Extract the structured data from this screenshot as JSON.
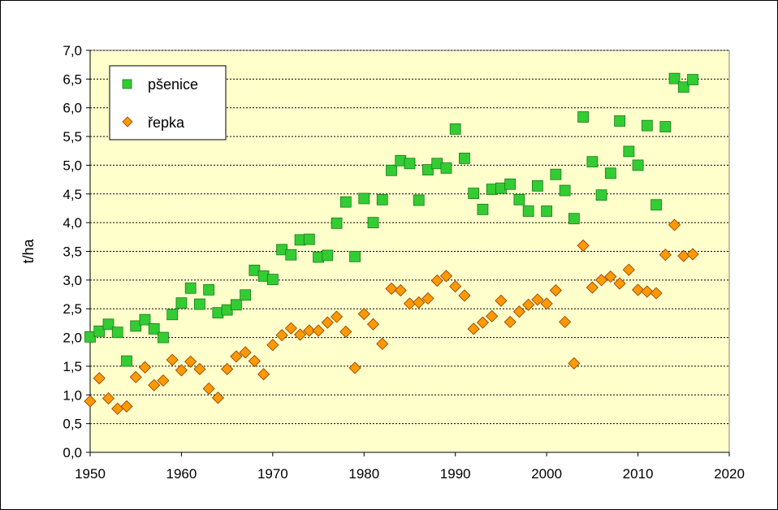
{
  "chart_data": {
    "type": "scatter",
    "title": "",
    "xlabel": "",
    "ylabel": "t/ha",
    "xlim": [
      1950,
      2020
    ],
    "ylim": [
      0,
      7
    ],
    "x_ticks": [
      "1950",
      "1960",
      "1970",
      "1980",
      "1990",
      "2000",
      "2010",
      "2020"
    ],
    "y_ticks": [
      "0,0",
      "0,5",
      "1,0",
      "1,5",
      "2,0",
      "2,5",
      "3,0",
      "3,5",
      "4,0",
      "4,5",
      "5,0",
      "5,5",
      "6,0",
      "6,5",
      "7,0"
    ],
    "grid": "horizontal dashed",
    "legend_position": "top-left",
    "plot_background": "#ffffcc",
    "series": [
      {
        "name": "pšenice",
        "marker": "square",
        "color": "#33cc33",
        "stroke": "#1a7a1a",
        "x": [
          1950,
          1951,
          1952,
          1953,
          1954,
          1955,
          1956,
          1957,
          1958,
          1959,
          1960,
          1961,
          1962,
          1963,
          1964,
          1965,
          1966,
          1967,
          1968,
          1969,
          1970,
          1971,
          1972,
          1973,
          1974,
          1975,
          1976,
          1977,
          1978,
          1979,
          1980,
          1981,
          1982,
          1983,
          1984,
          1985,
          1986,
          1987,
          1988,
          1989,
          1990,
          1991,
          1992,
          1993,
          1994,
          1995,
          1996,
          1997,
          1998,
          1999,
          2000,
          2001,
          2002,
          2003,
          2004,
          2005,
          2006,
          2007,
          2008,
          2009,
          2010,
          2011,
          2012,
          2013,
          2014,
          2015,
          2016
        ],
        "y": [
          2.01,
          2.11,
          2.23,
          2.09,
          1.59,
          2.2,
          2.31,
          2.15,
          2.0,
          2.4,
          2.6,
          2.86,
          2.58,
          2.83,
          2.43,
          2.48,
          2.57,
          2.74,
          3.17,
          3.07,
          3.01,
          3.53,
          3.44,
          3.7,
          3.71,
          3.4,
          3.43,
          3.99,
          4.36,
          3.41,
          4.42,
          4.0,
          4.4,
          4.91,
          5.08,
          5.03,
          4.39,
          4.92,
          5.03,
          4.95,
          5.63,
          5.12,
          4.51,
          4.23,
          4.58,
          4.6,
          4.67,
          4.4,
          4.2,
          4.64,
          4.2,
          4.84,
          4.56,
          4.07,
          5.84,
          5.06,
          4.48,
          4.86,
          5.77,
          5.24,
          5.0,
          5.69,
          4.31,
          5.67,
          6.51,
          6.36,
          6.49
        ]
      },
      {
        "name": "řepka",
        "marker": "diamond",
        "color": "#ff9900",
        "stroke": "#8b3a00",
        "x": [
          1950,
          1951,
          1952,
          1953,
          1954,
          1955,
          1956,
          1957,
          1958,
          1959,
          1960,
          1961,
          1962,
          1963,
          1964,
          1965,
          1966,
          1967,
          1968,
          1969,
          1970,
          1971,
          1972,
          1973,
          1974,
          1975,
          1976,
          1977,
          1978,
          1979,
          1980,
          1981,
          1982,
          1983,
          1984,
          1985,
          1986,
          1987,
          1988,
          1989,
          1990,
          1991,
          1992,
          1993,
          1994,
          1995,
          1996,
          1997,
          1998,
          1999,
          2000,
          2001,
          2002,
          2003,
          2004,
          2005,
          2006,
          2007,
          2008,
          2009,
          2010,
          2011,
          2012,
          2013,
          2014,
          2015,
          2016
        ],
        "y": [
          0.89,
          1.29,
          0.94,
          0.76,
          0.8,
          1.31,
          1.48,
          1.17,
          1.25,
          1.61,
          1.43,
          1.58,
          1.45,
          1.11,
          0.95,
          1.45,
          1.67,
          1.74,
          1.59,
          1.36,
          1.87,
          2.04,
          2.16,
          2.05,
          2.12,
          2.12,
          2.26,
          2.36,
          2.1,
          1.47,
          2.41,
          2.23,
          1.89,
          2.85,
          2.82,
          2.59,
          2.61,
          2.68,
          2.99,
          3.07,
          2.89,
          2.73,
          2.15,
          2.26,
          2.37,
          2.64,
          2.27,
          2.45,
          2.57,
          2.66,
          2.59,
          2.82,
          2.27,
          1.55,
          3.6,
          2.87,
          3.0,
          3.06,
          2.94,
          3.18,
          2.83,
          2.8,
          2.77,
          3.44,
          3.96,
          3.42,
          3.45
        ]
      }
    ]
  }
}
